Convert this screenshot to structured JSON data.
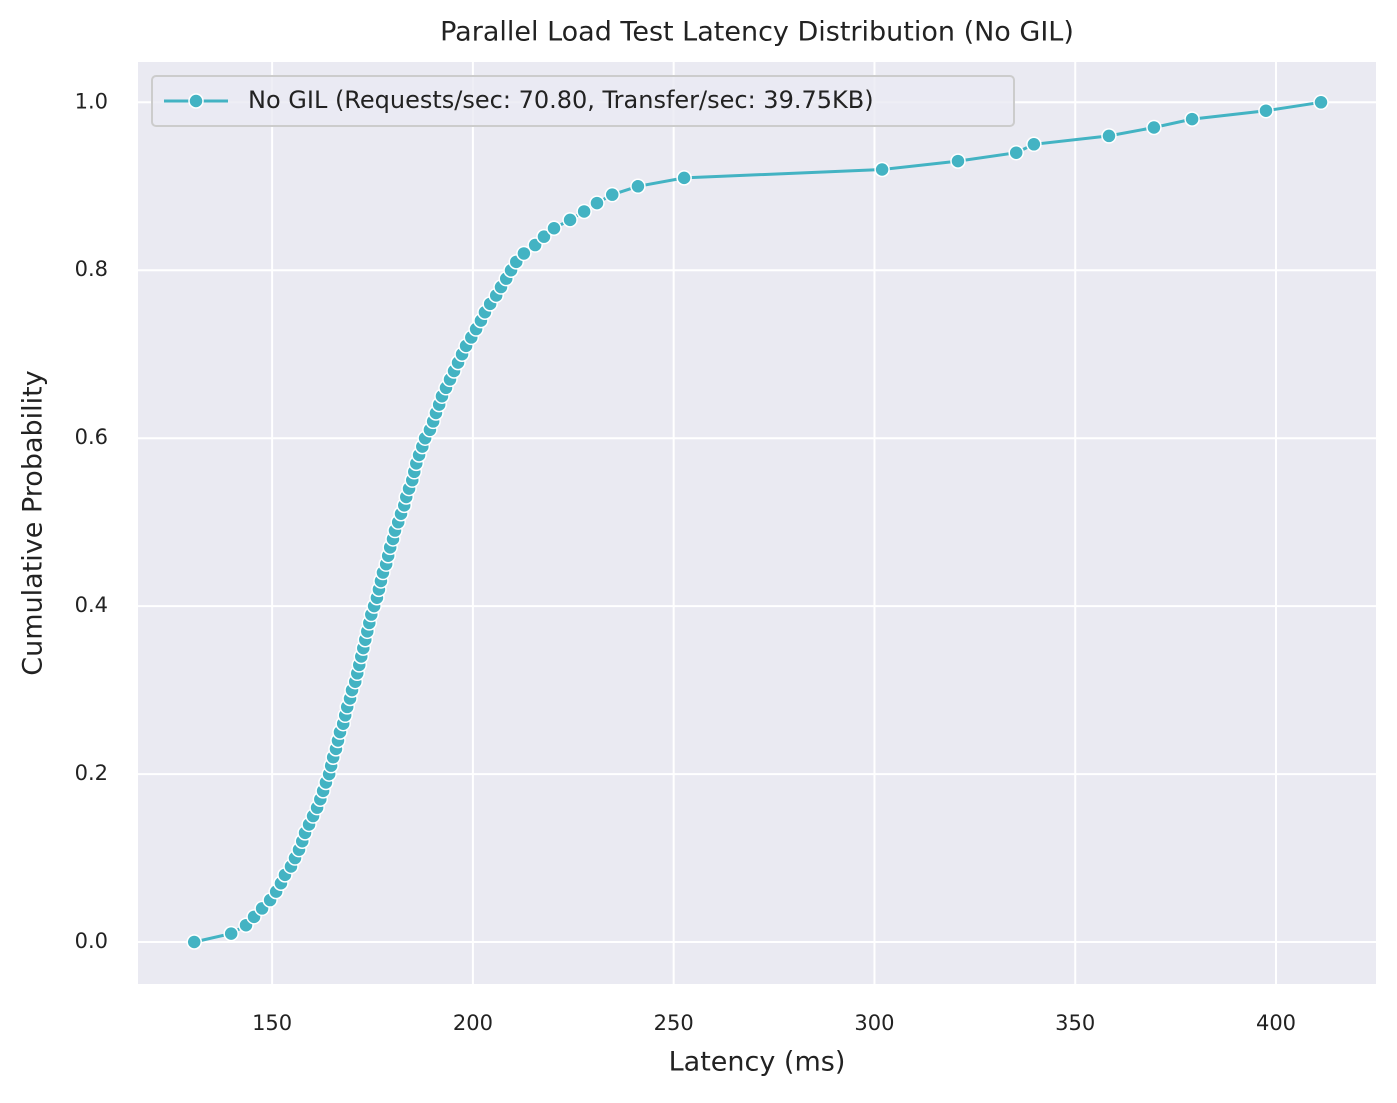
{
  "chart_data": {
    "type": "line",
    "title": "Parallel Load Test Latency Distribution (No GIL)",
    "x_label": "Latency (ms)",
    "y_label": "Cumulative Probability",
    "x": [
      130.6,
      139.8,
      143.5,
      145.5,
      147.5,
      149.5,
      151,
      152.2,
      153.2,
      154.7,
      155.7,
      156.7,
      157.5,
      158.2,
      159.2,
      160.2,
      161.2,
      162,
      162.7,
      163.4,
      164.2,
      164.7,
      165.2,
      165.9,
      166.4,
      166.9,
      167.7,
      168.2,
      168.7,
      169.4,
      169.9,
      170.7,
      171.2,
      171.7,
      172.2,
      172.7,
      173.2,
      173.7,
      174.2,
      174.7,
      175.4,
      176.1,
      176.6,
      177.1,
      177.6,
      178.4,
      178.9,
      179.4,
      180.1,
      180.6,
      181.4,
      182.1,
      182.9,
      183.4,
      184.1,
      184.9,
      185.4,
      185.9,
      186.6,
      187.4,
      188.1,
      189.3,
      190.1,
      190.8,
      191.6,
      192.3,
      193.3,
      194.3,
      195.3,
      196.3,
      197.3,
      198.3,
      199.6,
      200.8,
      202,
      203,
      204.3,
      205.8,
      207,
      208.3,
      209.5,
      210.8,
      212.7,
      215.5,
      217.7,
      220.2,
      224.2,
      227.7,
      230.9,
      234.7,
      241.1,
      252.6,
      301.9,
      320.8,
      335.3,
      339.7,
      358.4,
      369.6,
      379.1,
      397.5,
      411.2
    ],
    "series": [
      {
        "name": "No GIL (Requests/sec: 70.80, Transfer/sec: 39.75KB)",
        "color": "#43b3c3",
        "values": [
          0,
          0.01,
          0.02,
          0.03,
          0.04,
          0.05,
          0.06,
          0.07,
          0.08,
          0.09,
          0.1,
          0.11,
          0.12,
          0.13,
          0.14,
          0.15,
          0.16,
          0.17,
          0.18,
          0.19,
          0.2,
          0.21,
          0.22,
          0.23,
          0.24,
          0.25,
          0.26,
          0.27,
          0.28,
          0.29,
          0.3,
          0.31,
          0.32,
          0.33,
          0.34,
          0.35,
          0.36,
          0.37,
          0.38,
          0.39,
          0.4,
          0.41,
          0.42,
          0.43,
          0.44,
          0.45,
          0.46,
          0.47,
          0.48,
          0.49,
          0.5,
          0.51,
          0.52,
          0.53,
          0.54,
          0.55,
          0.56,
          0.57,
          0.58,
          0.59,
          0.6,
          0.61,
          0.62,
          0.63,
          0.64,
          0.65,
          0.66,
          0.67,
          0.68,
          0.69,
          0.7,
          0.71,
          0.72,
          0.73,
          0.74,
          0.75,
          0.76,
          0.77,
          0.78,
          0.79,
          0.8,
          0.81,
          0.82,
          0.83,
          0.84,
          0.85,
          0.86,
          0.87,
          0.88,
          0.89,
          0.9,
          0.91,
          0.92,
          0.93,
          0.94,
          0.95,
          0.96,
          0.97,
          0.98,
          0.99,
          1
        ]
      }
    ],
    "xlim": [
      116.6,
      424.9
    ],
    "ylim": [
      -0.05,
      1.048
    ],
    "xticks": [
      150,
      200,
      250,
      300,
      350,
      400
    ],
    "yticks": [
      {
        "value": 0,
        "label": "0.0"
      },
      0.2,
      0.4,
      0.6,
      0.8,
      {
        "value": 1,
        "label": "1.0"
      }
    ],
    "grid": true,
    "legend": "upper left",
    "background": "#eaeaf2"
  }
}
